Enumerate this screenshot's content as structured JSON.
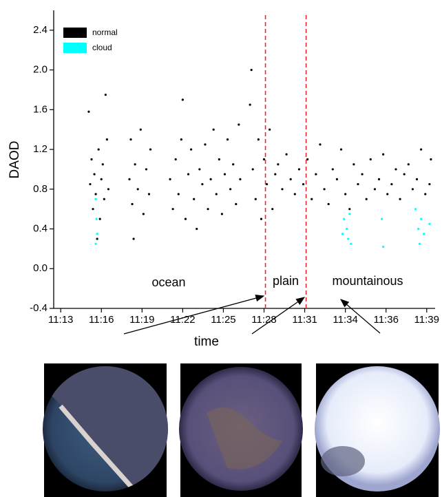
{
  "chart_data": {
    "type": "scatter",
    "x_label": "time",
    "y_label": "DAOD",
    "annotations": [
      "ocean",
      "plain",
      "mountainous"
    ],
    "vlines": [
      27.6,
      30.5
    ],
    "vline_color": "#e8262a",
    "legend": "upper left",
    "xlim": [
      12.5,
      39.7
    ],
    "ylim": [
      -0.4,
      2.6
    ],
    "xticks": [
      {
        "value": 13,
        "label": "11:13"
      },
      {
        "value": 15.9,
        "label": "11:16"
      },
      {
        "value": 18.8,
        "label": "11:19"
      },
      {
        "value": 21.7,
        "label": "11:22"
      },
      {
        "value": 24.6,
        "label": "11:25"
      },
      {
        "value": 27.5,
        "label": "11:28"
      },
      {
        "value": 30.4,
        "label": "11:31"
      },
      {
        "value": 33.3,
        "label": "11:34"
      },
      {
        "value": 36.2,
        "label": "11:36"
      },
      {
        "value": 39.1,
        "label": "11:39"
      }
    ],
    "yticks": [
      -0.4,
      {
        "value": 0,
        "label": "0.0"
      },
      0.4,
      0.8,
      1.2,
      1.6,
      {
        "value": 2,
        "label": "2.0"
      },
      2.4
    ],
    "series": [
      {
        "name": "normal",
        "color": "#000000",
        "x": [
          15.1,
          15.2,
          15.3,
          15.4,
          15.5,
          15.7,
          15.8,
          15.9,
          16.0,
          16.1,
          16.2,
          16.3,
          16.4,
          15.0,
          15.6,
          17.9,
          18.0,
          18.1,
          18.3,
          18.5,
          18.7,
          18.9,
          19.1,
          19.3,
          19.4,
          18.2,
          20.8,
          21.0,
          21.2,
          21.4,
          21.6,
          21.7,
          21.9,
          22.1,
          22.3,
          22.5,
          22.7,
          22.9,
          23.1,
          23.3,
          23.5,
          23.7,
          23.9,
          24.1,
          24.3,
          24.5,
          24.7,
          24.9,
          25.1,
          25.3,
          25.5,
          25.7,
          25.8,
          26.5,
          26.6,
          26.7,
          26.9,
          27.1,
          27.3,
          27.5,
          27.7,
          27.9,
          28.1,
          28.3,
          28.5,
          28.8,
          29.1,
          29.4,
          29.7,
          30.0,
          30.3,
          30.6,
          30.9,
          31.2,
          31.5,
          31.8,
          32.1,
          32.4,
          32.7,
          33.0,
          33.3,
          33.6,
          33.9,
          34.2,
          34.5,
          34.8,
          35.1,
          35.4,
          35.7,
          36.0,
          36.3,
          36.6,
          36.9,
          37.2,
          37.5,
          37.8,
          38.1,
          38.4,
          38.7,
          39.0,
          39.3,
          39.4
        ],
        "values": [
          0.85,
          1.1,
          0.6,
          0.95,
          0.75,
          1.2,
          0.5,
          0.9,
          1.05,
          0.7,
          1.75,
          1.3,
          0.8,
          1.58,
          0.3,
          0.9,
          1.3,
          0.65,
          1.05,
          0.8,
          1.4,
          0.55,
          1.0,
          0.75,
          1.2,
          0.3,
          0.9,
          0.6,
          1.1,
          0.75,
          1.3,
          1.7,
          0.5,
          0.95,
          1.2,
          0.7,
          0.4,
          1.0,
          0.85,
          1.25,
          0.6,
          0.9,
          1.4,
          0.75,
          1.1,
          0.55,
          0.95,
          1.3,
          0.8,
          1.05,
          0.65,
          1.45,
          0.9,
          1.65,
          2.0,
          1.0,
          0.7,
          1.3,
          0.5,
          1.1,
          0.85,
          1.4,
          0.6,
          0.95,
          1.05,
          0.8,
          1.15,
          0.9,
          0.75,
          1.0,
          0.85,
          1.1,
          0.7,
          0.95,
          1.25,
          0.8,
          0.65,
          1.0,
          0.9,
          1.2,
          0.75,
          0.6,
          1.05,
          0.85,
          0.95,
          0.7,
          1.1,
          0.8,
          0.9,
          1.15,
          0.75,
          0.85,
          1.0,
          0.7,
          0.95,
          1.05,
          0.8,
          0.9,
          1.2,
          0.75,
          0.85,
          1.1
        ]
      },
      {
        "name": "cloud",
        "color": "#00ffff",
        "x": [
          15.5,
          15.55,
          15.6,
          15.5,
          33.2,
          33.4,
          33.5,
          33.6,
          33.7,
          33.1,
          35.9,
          36.0,
          38.3,
          38.5,
          38.6,
          38.7,
          38.9,
          39.3
        ],
        "values": [
          0.7,
          0.5,
          0.35,
          0.25,
          0.5,
          0.4,
          0.3,
          0.55,
          0.25,
          0.35,
          0.5,
          0.22,
          0.6,
          0.4,
          0.25,
          0.5,
          0.35,
          0.45
        ]
      }
    ]
  }
}
